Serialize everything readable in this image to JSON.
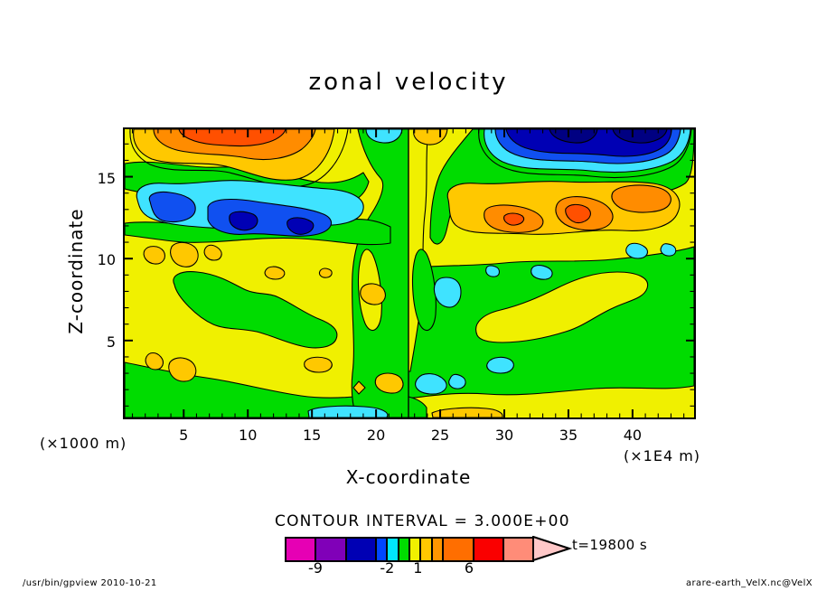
{
  "title": "zonal velocity",
  "axes": {
    "x": {
      "label": "X-coordinate",
      "unit": "(×1E4 m)",
      "range": [
        0.4,
        44.8
      ],
      "major_ticks": [
        5,
        10,
        15,
        20,
        25,
        30,
        35,
        40
      ],
      "minor_step": 1
    },
    "y": {
      "label": "Z-coordinate",
      "unit": "(×1000 m)",
      "range": [
        0.3,
        17.9
      ],
      "major_ticks": [
        5,
        10,
        15
      ],
      "minor_step": 1
    }
  },
  "legend": {
    "contour_interval_text": "CONTOUR INTERVAL = 3.000E+00",
    "time_label": "t=19800 s",
    "segments": [
      {
        "color": "#E600B4",
        "units": 3,
        "from": -12,
        "to": -9
      },
      {
        "color": "#8000B8",
        "units": 3,
        "from": -9,
        "to": -6
      },
      {
        "color": "#0000B4",
        "units": 3,
        "from": -6,
        "to": -3
      },
      {
        "color": "#0046FF",
        "units": 1,
        "from": -3,
        "to": -2
      },
      {
        "color": "#00E6FF",
        "units": 1,
        "from": -2,
        "to": -1
      },
      {
        "color": "#00DC00",
        "units": 1,
        "from": -1,
        "to": 0
      },
      {
        "color": "#F0F000",
        "units": 1,
        "from": 0,
        "to": 1
      },
      {
        "color": "#FFC800",
        "units": 1,
        "from": 1,
        "to": 2
      },
      {
        "color": "#FF9600",
        "units": 1,
        "from": 2,
        "to": 3
      },
      {
        "color": "#FF6E00",
        "units": 3,
        "from": 3,
        "to": 6
      },
      {
        "color": "#FA0000",
        "units": 3,
        "from": 6,
        "to": 9
      },
      {
        "color": "#FF8C78",
        "units": 3,
        "from": 9,
        "to": 12
      }
    ],
    "arrow_color": "#FFC8C8",
    "tick_labels": [
      {
        "text": "-9",
        "units_from_start": 3
      },
      {
        "text": "-2",
        "units_from_start": 10
      },
      {
        "text": "1",
        "units_from_start": 13
      },
      {
        "text": "6",
        "units_from_start": 18
      }
    ]
  },
  "footer": {
    "left": "/usr/bin/gpview  2010-10-21",
    "right": "arare-earth_VelX.nc@VelX"
  },
  "chart_data": {
    "type": "heatmap",
    "subtype": "filled_contour",
    "title": "zonal velocity",
    "xlabel": "X-coordinate",
    "x_unit": "×1E4 m",
    "x_range": [
      0.4,
      44.8
    ],
    "x_major_ticks": [
      5,
      10,
      15,
      20,
      25,
      30,
      35,
      40
    ],
    "ylabel": "Z-coordinate",
    "y_unit": "×1000 m",
    "y_range": [
      0.3,
      17.9
    ],
    "y_major_ticks": [
      5,
      10,
      15
    ],
    "time_annotation": "t=19800 s",
    "contour_interval": 3.0,
    "tone_levels": [
      -12,
      -9,
      -6,
      -3,
      -2,
      -1,
      0,
      1,
      2,
      3,
      6,
      9,
      12
    ],
    "tone_colors": [
      "#E600B4",
      "#8000B8",
      "#0000B4",
      "#0046FF",
      "#00E6FF",
      "#00DC00",
      "#F0F000",
      "#FFC800",
      "#FF9600",
      "#FF6E00",
      "#FA0000",
      "#FF8C78",
      "#FFC8C8"
    ],
    "grid": false,
    "legend_position": "bottom",
    "notable_features": [
      {
        "sign": "positive",
        "approx_value": "6 to 9",
        "x": "2-14",
        "z": "16-18",
        "note": "orange/red maximum along top, left of center"
      },
      {
        "sign": "negative",
        "approx_value": "-6 to -9",
        "x": "29-43",
        "z": "16-18",
        "note": "dark blue minimum along top, right of center"
      },
      {
        "sign": "negative",
        "approx_value": "-2 to -6",
        "x": "1-22",
        "z": "11.5-14.5",
        "note": "cyan/blue band with two blue cores near x=9 and x=14"
      },
      {
        "sign": "positive",
        "approx_value": "2 to 6",
        "x": "25-43",
        "z": "11.5-14.5",
        "note": "gold/orange band with orange cores near x=31 and x=36"
      },
      {
        "sign": "near-zero",
        "approx_value": "-1 to 2",
        "x": "0-45",
        "z": "0-11",
        "note": "broad green/yellow region with small ±2 patches"
      },
      {
        "sign": "axis",
        "approx_value": "0",
        "x": "22.5",
        "z": "0-18",
        "note": "vertical contour seam / antisymmetry line at domain center"
      }
    ]
  }
}
